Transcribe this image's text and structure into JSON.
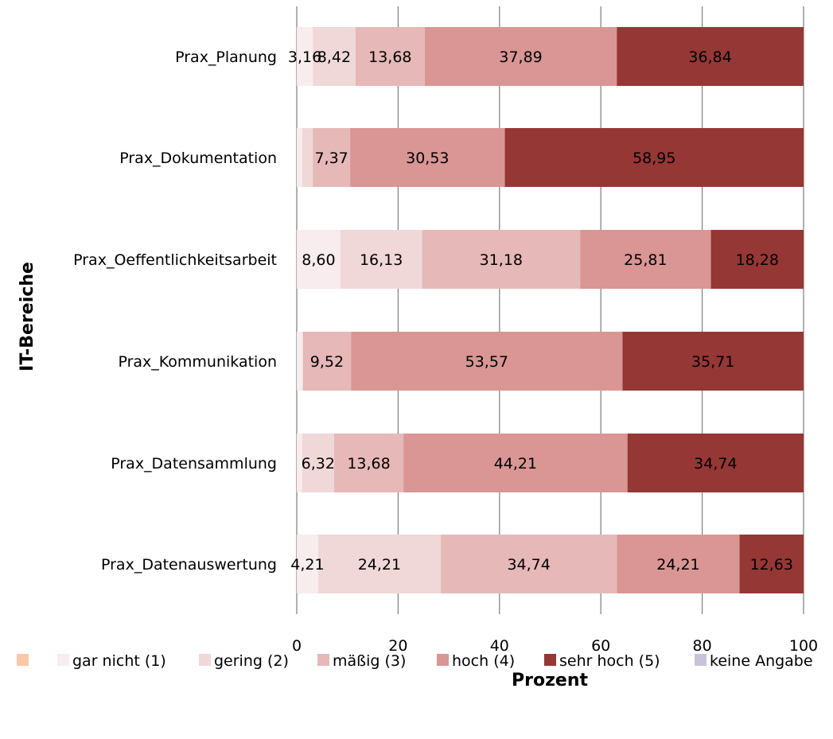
{
  "chart_data": {
    "type": "bar",
    "orientation": "horizontal",
    "stacked": true,
    "percent_stacked": true,
    "xlabel": "Prozent",
    "ylabel": "IT-Bereiche",
    "xlim": [
      0,
      100
    ],
    "xticks": [
      "0",
      "20",
      "40",
      "60",
      "80",
      "100"
    ],
    "categories": [
      "Prax_Planung",
      "Prax_Dokumentation",
      "Prax_Oeffentlichkeitsarbeit",
      "Prax_Kommunikation",
      "Prax_Datensammlung",
      "Prax_Datenauswertung"
    ],
    "series": [
      {
        "name": "",
        "color": "#fac8a8",
        "values": [
          0,
          0,
          0,
          0,
          0,
          0
        ],
        "labels": [
          "",
          "",
          "",
          "",
          "",
          ""
        ]
      },
      {
        "name": "gar nicht (1)",
        "color": "#f8ecee",
        "values": [
          3.16,
          1.05,
          8.6,
          1.19,
          1.05,
          4.21
        ],
        "labels": [
          "3,16",
          "",
          "8,60",
          "",
          "",
          "4,21"
        ]
      },
      {
        "name": "gering (2)",
        "color": "#f0d8d8",
        "values": [
          8.42,
          2.11,
          16.13,
          0,
          6.32,
          24.21
        ],
        "labels": [
          "8,42",
          "",
          "16,13",
          "",
          "6,32",
          "24,21"
        ]
      },
      {
        "name": "mäßig (3)",
        "color": "#e6b8b8",
        "values": [
          13.68,
          7.37,
          31.18,
          9.52,
          13.68,
          34.74
        ],
        "labels": [
          "13,68",
          "7,37",
          "31,18",
          "9,52",
          "13,68",
          "34,74"
        ]
      },
      {
        "name": "hoch (4)",
        "color": "#d99694",
        "values": [
          37.89,
          30.53,
          25.81,
          53.57,
          44.21,
          24.21
        ],
        "labels": [
          "37,89",
          "30,53",
          "25,81",
          "53,57",
          "44,21",
          "24,21"
        ]
      },
      {
        "name": "sehr hoch (5)",
        "color": "#953735",
        "values": [
          36.84,
          58.95,
          18.28,
          35.71,
          34.74,
          12.63
        ],
        "labels": [
          "36,84",
          "58,95",
          "18,28",
          "35,71",
          "34,74",
          "12,63"
        ]
      },
      {
        "name": "keine Angabe",
        "color": "#ccc1da",
        "values": [
          0,
          0,
          0,
          0,
          0,
          0
        ],
        "labels": [
          "",
          "",
          "",
          "",
          "",
          ""
        ]
      }
    ],
    "grid": true,
    "legend_position": "bottom"
  }
}
